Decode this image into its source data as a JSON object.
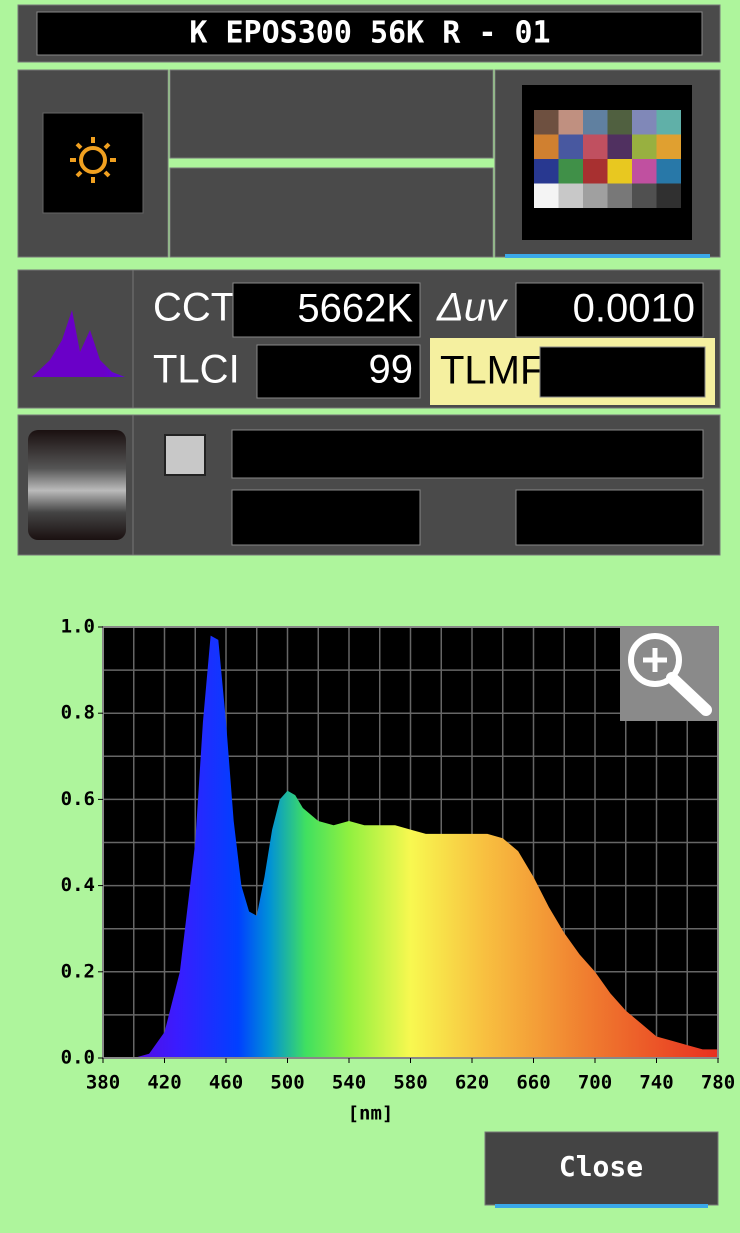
{
  "header": {
    "title": "K EPOS300 56K R - 01"
  },
  "readings": {
    "cct_label": "CCT",
    "cct": "5662K",
    "duv_label": "Δuv",
    "duv": "0.0010",
    "tlci_label": "TLCI",
    "tlci": "99",
    "tlmf_label": "TLMF"
  },
  "chart_data": {
    "type": "area",
    "x_label": "[nm]",
    "x": [
      380,
      390,
      400,
      410,
      420,
      430,
      440,
      445,
      450,
      455,
      460,
      465,
      470,
      475,
      480,
      485,
      490,
      495,
      500,
      505,
      510,
      520,
      530,
      540,
      550,
      560,
      570,
      580,
      590,
      600,
      610,
      620,
      630,
      640,
      650,
      660,
      670,
      680,
      690,
      700,
      710,
      720,
      730,
      740,
      750,
      760,
      770,
      780
    ],
    "values": [
      0,
      0,
      0,
      0.01,
      0.06,
      0.2,
      0.5,
      0.78,
      0.98,
      0.97,
      0.78,
      0.55,
      0.4,
      0.34,
      0.33,
      0.42,
      0.53,
      0.6,
      0.62,
      0.61,
      0.58,
      0.55,
      0.54,
      0.55,
      0.54,
      0.54,
      0.54,
      0.53,
      0.52,
      0.52,
      0.52,
      0.52,
      0.52,
      0.51,
      0.48,
      0.42,
      0.35,
      0.29,
      0.24,
      0.2,
      0.15,
      0.11,
      0.08,
      0.05,
      0.04,
      0.03,
      0.02,
      0.02
    ],
    "xlim": [
      380,
      780
    ],
    "ylim": [
      0,
      1
    ],
    "xticks": [
      380,
      420,
      460,
      500,
      540,
      580,
      620,
      660,
      700,
      740,
      780
    ],
    "yticks": [
      {
        "value": 0,
        "label": "0.0"
      },
      {
        "value": 0.2,
        "label": "0.2"
      },
      {
        "value": 0.4,
        "label": "0.4"
      },
      {
        "value": 0.6,
        "label": "0.6"
      },
      {
        "value": 0.8,
        "label": "0.8"
      },
      {
        "value": 1,
        "label": "1.0"
      }
    ],
    "xgrid": [
      400,
      420,
      440,
      460,
      480,
      500,
      520,
      540,
      560,
      580,
      600,
      620,
      640,
      660,
      680,
      700,
      720,
      740,
      760
    ],
    "ygrid": [
      0.1,
      0.2,
      0.3,
      0.4,
      0.5,
      0.6,
      0.7,
      0.8,
      0.9
    ],
    "grid": true
  },
  "buttons": {
    "close": "Close"
  }
}
